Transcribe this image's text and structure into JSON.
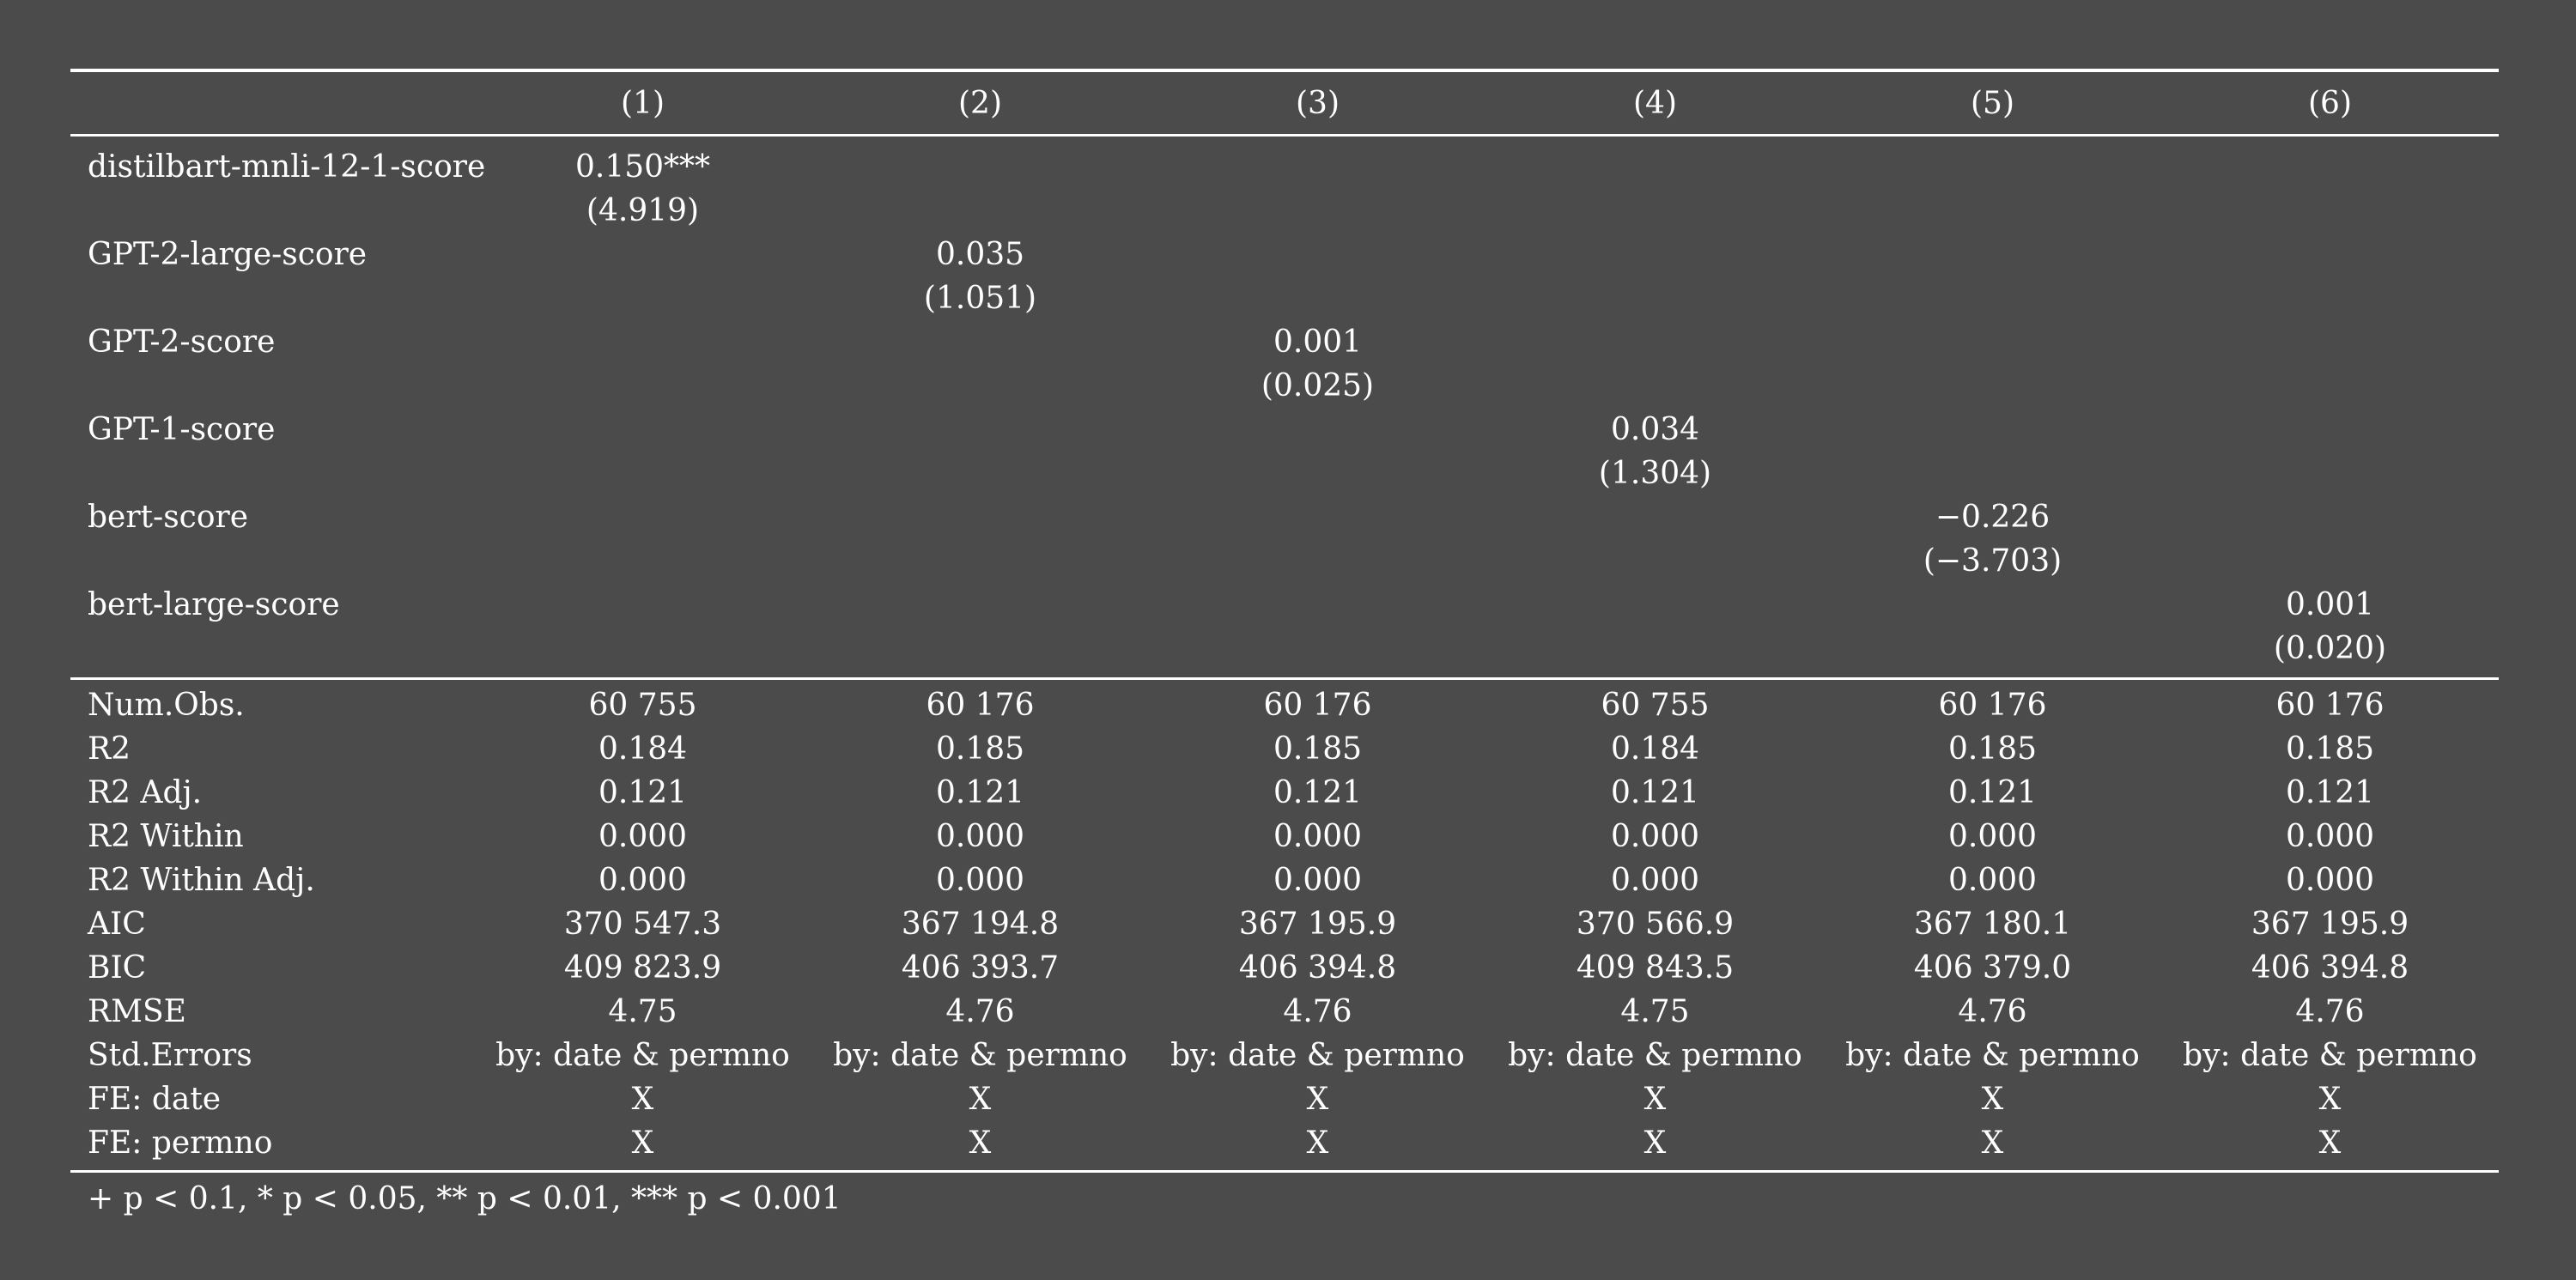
{
  "columns": [
    "(1)",
    "(2)",
    "(3)",
    "(4)",
    "(5)",
    "(6)"
  ],
  "coefficients": [
    {
      "label": "distilbart-mnli-12-1-score",
      "coef": [
        "0.150***",
        "",
        "",
        "",
        "",
        ""
      ],
      "se": [
        "(4.919)",
        "",
        "",
        "",
        "",
        ""
      ]
    },
    {
      "label": "GPT-2-large-score",
      "coef": [
        "",
        "0.035",
        "",
        "",
        "",
        ""
      ],
      "se": [
        "",
        "(1.051)",
        "",
        "",
        "",
        ""
      ]
    },
    {
      "label": "GPT-2-score",
      "coef": [
        "",
        "",
        "0.001",
        "",
        "",
        ""
      ],
      "se": [
        "",
        "",
        "(0.025)",
        "",
        "",
        ""
      ]
    },
    {
      "label": "GPT-1-score",
      "coef": [
        "",
        "",
        "",
        "0.034",
        "",
        ""
      ],
      "se": [
        "",
        "",
        "",
        "(1.304)",
        "",
        ""
      ]
    },
    {
      "label": "bert-score",
      "coef": [
        "",
        "",
        "",
        "",
        "−0.226",
        ""
      ],
      "se": [
        "",
        "",
        "",
        "",
        "(−3.703)",
        ""
      ]
    },
    {
      "label": "bert-large-score",
      "coef": [
        "",
        "",
        "",
        "",
        "",
        "0.001"
      ],
      "se": [
        "",
        "",
        "",
        "",
        "",
        "(0.020)"
      ]
    }
  ],
  "stats": [
    {
      "label": "Num.Obs.",
      "values": [
        "60 755",
        "60 176",
        "60 176",
        "60 755",
        "60 176",
        "60 176"
      ]
    },
    {
      "label": "R2",
      "values": [
        "0.184",
        "0.185",
        "0.185",
        "0.184",
        "0.185",
        "0.185"
      ]
    },
    {
      "label": "R2 Adj.",
      "values": [
        "0.121",
        "0.121",
        "0.121",
        "0.121",
        "0.121",
        "0.121"
      ]
    },
    {
      "label": "R2 Within",
      "values": [
        "0.000",
        "0.000",
        "0.000",
        "0.000",
        "0.000",
        "0.000"
      ]
    },
    {
      "label": "R2 Within Adj.",
      "values": [
        "0.000",
        "0.000",
        "0.000",
        "0.000",
        "0.000",
        "0.000"
      ]
    },
    {
      "label": "AIC",
      "values": [
        "370 547.3",
        "367 194.8",
        "367 195.9",
        "370 566.9",
        "367 180.1",
        "367 195.9"
      ]
    },
    {
      "label": "BIC",
      "values": [
        "409 823.9",
        "406 393.7",
        "406 394.8",
        "409 843.5",
        "406 379.0",
        "406 394.8"
      ]
    },
    {
      "label": "RMSE",
      "values": [
        "4.75",
        "4.76",
        "4.76",
        "4.75",
        "4.76",
        "4.76"
      ]
    },
    {
      "label": "Std.Errors",
      "values": [
        "by: date & permno",
        "by: date & permno",
        "by: date & permno",
        "by: date & permno",
        "by: date & permno",
        "by: date & permno"
      ]
    },
    {
      "label": "FE: date",
      "values": [
        "X",
        "X",
        "X",
        "X",
        "X",
        "X"
      ]
    },
    {
      "label": "FE: permno",
      "values": [
        "X",
        "X",
        "X",
        "X",
        "X",
        "X"
      ]
    }
  ],
  "notes": "+ p < 0.1, * p < 0.05, ** p < 0.01, *** p < 0.001"
}
